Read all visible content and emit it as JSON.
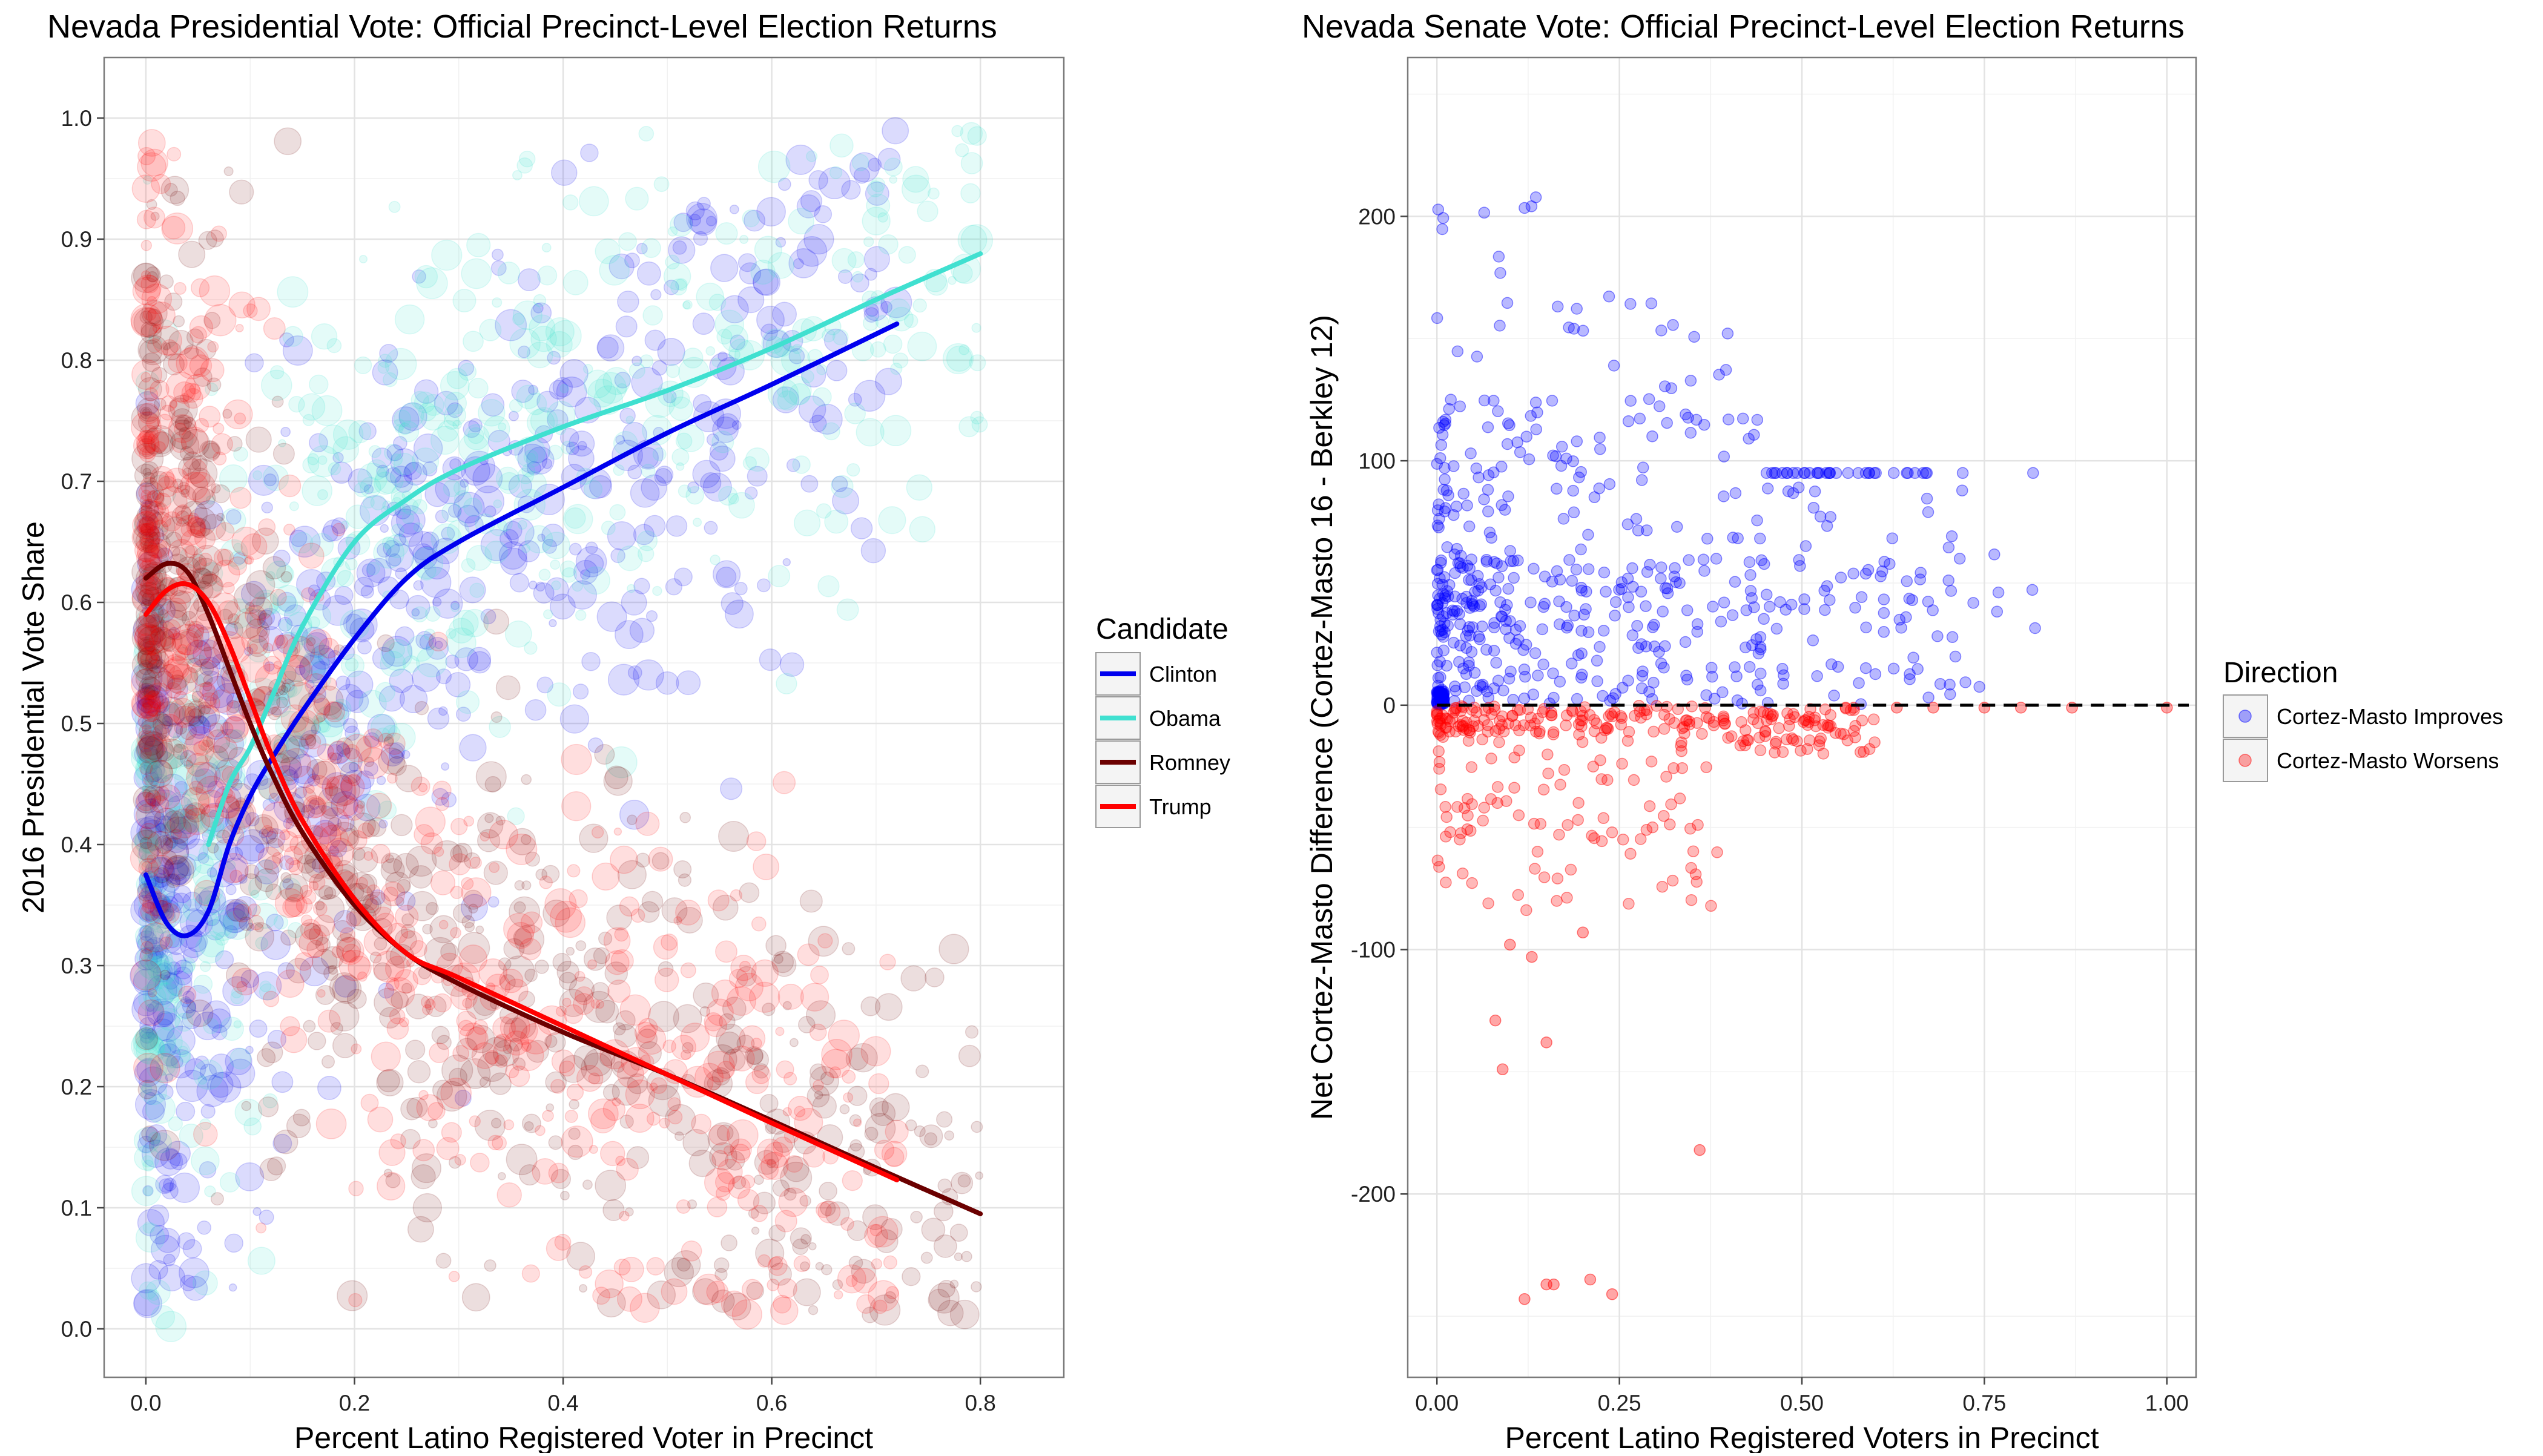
{
  "chart_data": [
    {
      "type": "scatter",
      "title": "Nevada Presidential Vote: Official Precinct-Level Election Returns",
      "xlabel": "Percent Latino Registered Voter in Precinct",
      "ylabel": "2016 Presidential Vote Share",
      "xlim": [
        -0.04,
        0.88
      ],
      "ylim": [
        -0.04,
        1.05
      ],
      "x_ticks": [
        0.0,
        0.2,
        0.4,
        0.6,
        0.8
      ],
      "x_tick_labels": [
        "0.0",
        "0.2",
        "0.4",
        "0.6",
        "0.8"
      ],
      "y_ticks": [
        0.0,
        0.1,
        0.2,
        0.3,
        0.4,
        0.5,
        0.6,
        0.7,
        0.8,
        0.9,
        1.0
      ],
      "y_tick_labels": [
        "0.0",
        "0.1",
        "0.2",
        "0.3",
        "0.4",
        "0.5",
        "0.6",
        "0.7",
        "0.8",
        "0.9",
        "1.0"
      ],
      "grid": true,
      "legend": {
        "title": "Candidate",
        "placement": "right"
      },
      "series": [
        {
          "name": "Clinton",
          "color": "#0000ee",
          "point_cloud": {
            "n": 750,
            "x_range": [
              0.0,
              0.72
            ],
            "alpha": 0.14
          },
          "smooth": {
            "x": [
              0.0,
              0.02,
              0.04,
              0.06,
              0.08,
              0.1,
              0.12,
              0.15,
              0.2,
              0.25,
              0.3,
              0.4,
              0.5,
              0.6,
              0.72
            ],
            "y": [
              0.375,
              0.335,
              0.325,
              0.345,
              0.4,
              0.44,
              0.47,
              0.51,
              0.57,
              0.62,
              0.65,
              0.695,
              0.74,
              0.78,
              0.83
            ]
          }
        },
        {
          "name": "Obama",
          "color": "#40e0d0",
          "point_cloud": {
            "n": 700,
            "x_range": [
              0.0,
              0.8
            ],
            "alpha": 0.14
          },
          "smooth": {
            "x": [
              0.06,
              0.08,
              0.1,
              0.12,
              0.15,
              0.2,
              0.25,
              0.3,
              0.4,
              0.5,
              0.6,
              0.7,
              0.8
            ],
            "y": [
              0.4,
              0.45,
              0.48,
              0.52,
              0.58,
              0.65,
              0.685,
              0.71,
              0.745,
              0.775,
              0.81,
              0.85,
              0.888
            ]
          }
        },
        {
          "name": "Romney",
          "color": "#6b0000",
          "point_cloud": {
            "n": 750,
            "x_range": [
              0.0,
              0.8
            ],
            "alpha": 0.13
          },
          "smooth": {
            "x": [
              0.0,
              0.02,
              0.04,
              0.06,
              0.08,
              0.1,
              0.12,
              0.15,
              0.2,
              0.25,
              0.3,
              0.4,
              0.5,
              0.6,
              0.7,
              0.8
            ],
            "y": [
              0.62,
              0.632,
              0.625,
              0.59,
              0.545,
              0.5,
              0.46,
              0.41,
              0.35,
              0.31,
              0.285,
              0.245,
              0.21,
              0.172,
              0.133,
              0.095
            ]
          }
        },
        {
          "name": "Trump",
          "color": "#ff0000",
          "point_cloud": {
            "n": 750,
            "x_range": [
              0.0,
              0.72
            ],
            "alpha": 0.13
          },
          "smooth": {
            "x": [
              0.0,
              0.02,
              0.04,
              0.06,
              0.08,
              0.1,
              0.12,
              0.15,
              0.2,
              0.25,
              0.3,
              0.4,
              0.5,
              0.6,
              0.72
            ],
            "y": [
              0.59,
              0.61,
              0.615,
              0.6,
              0.565,
              0.52,
              0.475,
              0.42,
              0.355,
              0.31,
              0.29,
              0.25,
              0.21,
              0.17,
              0.123
            ]
          }
        }
      ]
    },
    {
      "type": "scatter",
      "title": "Nevada Senate Vote: Official Precinct-Level Election Returns",
      "xlabel": "Percent Latino Registered Voters in Precinct",
      "ylabel": "Net Cortez-Masto Difference (Cortez-Masto 16 - Berkley 12)",
      "xlim": [
        -0.04,
        1.04
      ],
      "ylim": [
        -275,
        265
      ],
      "x_ticks": [
        0.0,
        0.25,
        0.5,
        0.75,
        1.0
      ],
      "x_tick_labels": [
        "0.00",
        "0.25",
        "0.50",
        "0.75",
        "1.00"
      ],
      "y_ticks": [
        -200,
        -100,
        0,
        100,
        200
      ],
      "y_tick_labels": [
        "-200",
        "-100",
        "0",
        "100",
        "200"
      ],
      "grid": true,
      "reference_line": {
        "y": 0,
        "style": "dashed",
        "color": "#000000"
      },
      "legend": {
        "title": "Direction",
        "placement": "right"
      },
      "series": [
        {
          "name": "Cortez-Masto Improves",
          "color": "#0000ff",
          "point_cloud": {
            "n": 560,
            "x_range": [
              0.0,
              0.83
            ],
            "y_range": [
              0,
              242
            ],
            "alpha": 0.28
          }
        },
        {
          "name": "Cortez-Masto Worsens",
          "color": "#ff0000",
          "point_cloud": {
            "n": 330,
            "x_range": [
              0.0,
              1.0
            ],
            "y_range": [
              -243,
              0
            ],
            "alpha": 0.28
          },
          "labeled_outliers": [
            {
              "x": 0.12,
              "y": -243
            },
            {
              "x": 0.15,
              "y": -237
            },
            {
              "x": 0.16,
              "y": -237
            },
            {
              "x": 0.21,
              "y": -235
            },
            {
              "x": 0.24,
              "y": -241
            },
            {
              "x": 0.36,
              "y": -182
            },
            {
              "x": 0.08,
              "y": -129
            },
            {
              "x": 0.09,
              "y": -149
            },
            {
              "x": 0.1,
              "y": -98
            },
            {
              "x": 0.13,
              "y": -103
            },
            {
              "x": 0.15,
              "y": -138
            },
            {
              "x": 0.2,
              "y": -93
            }
          ]
        }
      ]
    }
  ]
}
